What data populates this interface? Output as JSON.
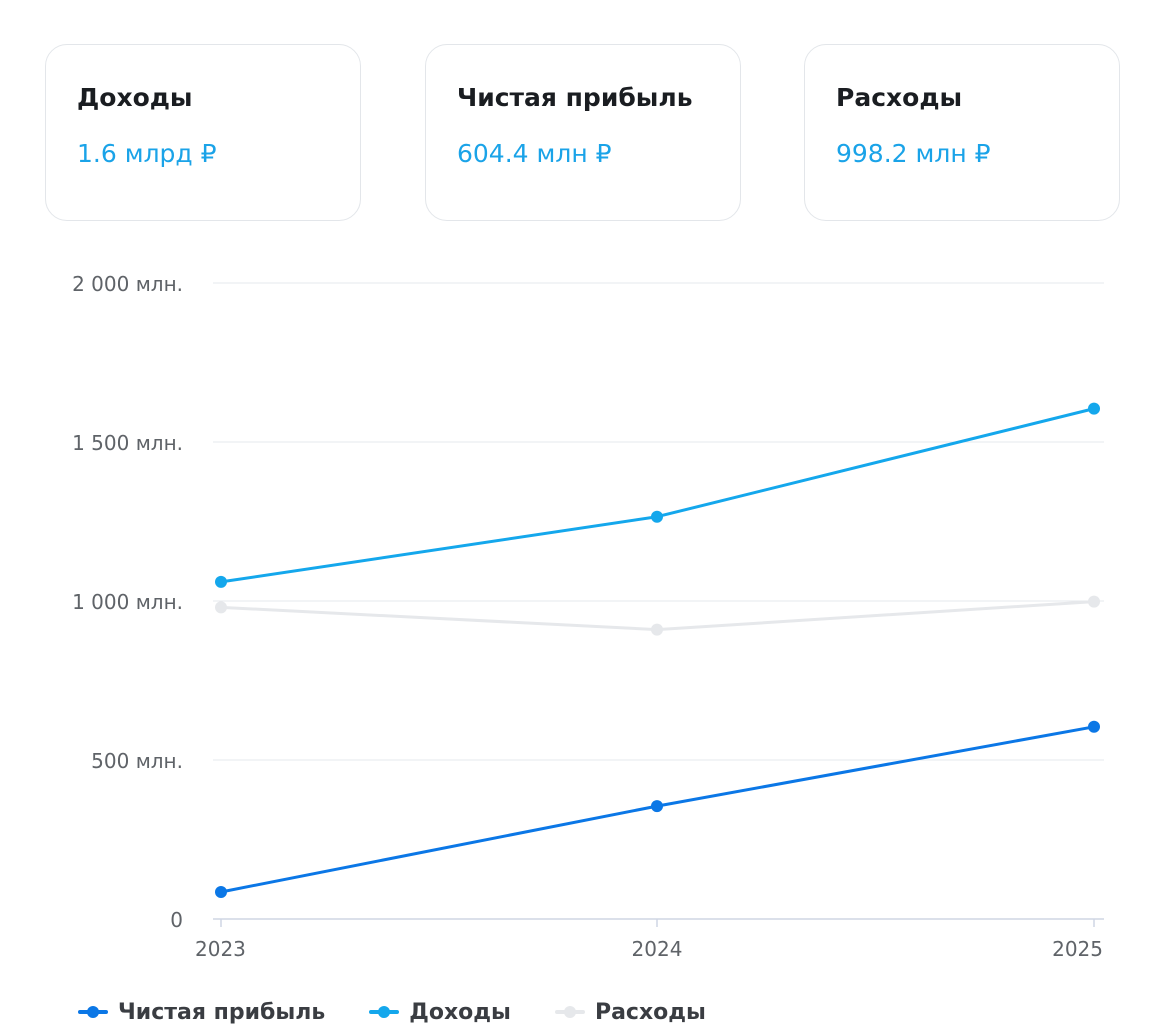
{
  "cards": [
    {
      "title": "Доходы",
      "value": "1.6 млрд ₽"
    },
    {
      "title": "Чистая прибыль",
      "value": "604.4 млн ₽"
    },
    {
      "title": "Расходы",
      "value": "998.2 млн ₽"
    }
  ],
  "chart_data": {
    "type": "line",
    "x": [
      "2023",
      "2024",
      "2025"
    ],
    "ylim": [
      0,
      2000
    ],
    "yticks": [
      {
        "value": 0,
        "label": "0"
      },
      {
        "value": 500,
        "label": "500 млн."
      },
      {
        "value": 1000,
        "label": "1 000 млн."
      },
      {
        "value": 1500,
        "label": "1 500 млн."
      },
      {
        "value": 2000,
        "label": "2 000 млн."
      }
    ],
    "grid": true,
    "legend": "bottom-left",
    "series": [
      {
        "name": "Чистая прибыль",
        "color": "#0b77e6",
        "values": [
          85,
          355,
          604.4
        ]
      },
      {
        "name": "Доходы",
        "color": "#14a7ec",
        "values": [
          1060,
          1265,
          1605
        ]
      },
      {
        "name": "Расходы",
        "color": "#e6e8eb",
        "values": [
          980,
          910,
          998.2
        ]
      }
    ]
  }
}
